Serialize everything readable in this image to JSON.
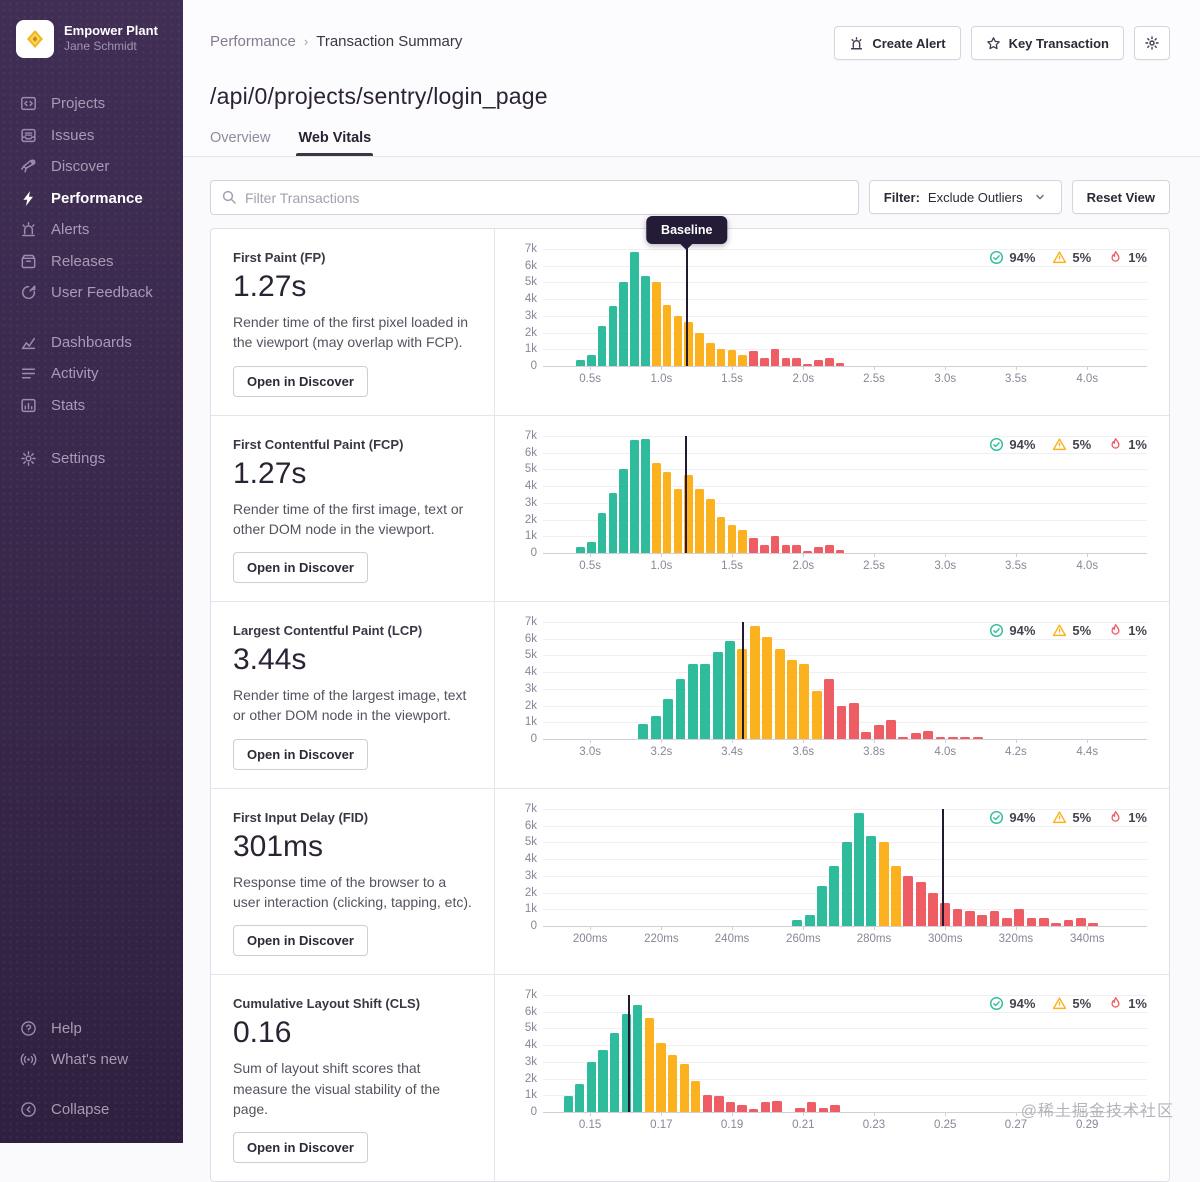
{
  "sidebar": {
    "org": {
      "name": "Empower Plant",
      "user": "Jane Schmidt"
    },
    "nav": [
      {
        "icon": "projects-icon",
        "label": "Projects"
      },
      {
        "icon": "issues-icon",
        "label": "Issues"
      },
      {
        "icon": "discover-icon",
        "label": "Discover"
      },
      {
        "icon": "performance-icon",
        "label": "Performance",
        "active": true
      },
      {
        "icon": "alerts-icon",
        "label": "Alerts"
      },
      {
        "icon": "releases-icon",
        "label": "Releases"
      },
      {
        "icon": "user-feedback-icon",
        "label": "User Feedback"
      },
      {
        "icon": "dashboards-icon",
        "label": "Dashboards"
      },
      {
        "icon": "activity-icon",
        "label": "Activity"
      },
      {
        "icon": "stats-icon",
        "label": "Stats"
      },
      {
        "icon": "settings-icon",
        "label": "Settings"
      },
      {
        "icon": "help-icon",
        "label": "Help"
      },
      {
        "icon": "whats-new-icon",
        "label": "What's new"
      },
      {
        "icon": "collapse-icon",
        "label": "Collapse"
      }
    ]
  },
  "header": {
    "breadcrumb_parent": "Performance",
    "breadcrumb_current": "Transaction Summary",
    "create_alert": "Create Alert",
    "key_transaction": "Key Transaction",
    "title": "/api/0/projects/sentry/login_page",
    "tab_overview": "Overview",
    "tab_web_vitals": "Web Vitals"
  },
  "toolbar": {
    "search_placeholder": "Filter Transactions",
    "filter_label": "Filter:",
    "filter_value": "Exclude Outliers",
    "reset_label": "Reset View"
  },
  "colors": {
    "green": "#2fbc9c",
    "yellow": "#fcb11f",
    "red": "#ee5c64",
    "baseline": "#231a32"
  },
  "panels": [
    {
      "title": "First Paint (FP)",
      "value": "1.27s",
      "description": "Render time of the first pixel loaded in the viewport (may overlap with FCP).",
      "button": "Open in Discover",
      "chart": {
        "type": "bar",
        "ymax": 7000,
        "y_ticks": [
          "7k",
          "6k",
          "5k",
          "4k",
          "3k",
          "2k",
          "1k",
          "0"
        ],
        "x_ticks": [
          {
            "label": "0.5s",
            "f": 0.078
          },
          {
            "label": "1.0s",
            "f": 0.196
          },
          {
            "label": "1.5s",
            "f": 0.313
          },
          {
            "label": "2.0s",
            "f": 0.431
          },
          {
            "label": "2.5s",
            "f": 0.548
          },
          {
            "label": "3.0s",
            "f": 0.666
          },
          {
            "label": "3.5s",
            "f": 0.783
          },
          {
            "label": "4.0s",
            "f": 0.901
          }
        ],
        "bars_start_f": 0.055,
        "bar_slot_f": 0.0179,
        "bars": [
          {
            "v": 350,
            "c": "green"
          },
          {
            "v": 650,
            "c": "green"
          },
          {
            "v": 2400,
            "c": "green"
          },
          {
            "v": 3600,
            "c": "green"
          },
          {
            "v": 5000,
            "c": "green"
          },
          {
            "v": 6800,
            "c": "green"
          },
          {
            "v": 5400,
            "c": "green"
          },
          {
            "v": 5050,
            "c": "yellow"
          },
          {
            "v": 3650,
            "c": "yellow"
          },
          {
            "v": 3000,
            "c": "yellow"
          },
          {
            "v": 2650,
            "c": "yellow"
          },
          {
            "v": 2000,
            "c": "yellow"
          },
          {
            "v": 1400,
            "c": "yellow"
          },
          {
            "v": 1000,
            "c": "yellow"
          },
          {
            "v": 950,
            "c": "yellow"
          },
          {
            "v": 650,
            "c": "yellow"
          },
          {
            "v": 900,
            "c": "red"
          },
          {
            "v": 450,
            "c": "red"
          },
          {
            "v": 1000,
            "c": "red"
          },
          {
            "v": 500,
            "c": "red"
          },
          {
            "v": 500,
            "c": "red"
          },
          {
            "v": 100,
            "c": "red"
          },
          {
            "v": 350,
            "c": "red"
          },
          {
            "v": 500,
            "c": "red"
          },
          {
            "v": 150,
            "c": "red"
          }
        ],
        "baseline_f": 0.238,
        "baseline_label": "Baseline",
        "badges": [
          {
            "type": "check",
            "value": "94%"
          },
          {
            "type": "warning",
            "value": "5%"
          },
          {
            "type": "fire",
            "value": "1%"
          }
        ]
      }
    },
    {
      "title": "First Contentful Paint (FCP)",
      "value": "1.27s",
      "description": "Render time of the first image, text or other DOM node in the viewport.",
      "button": "Open in Discover",
      "chart": {
        "type": "bar",
        "ymax": 7000,
        "y_ticks": [
          "7k",
          "6k",
          "5k",
          "4k",
          "3k",
          "2k",
          "1k",
          "0"
        ],
        "x_ticks": [
          {
            "label": "0.5s",
            "f": 0.078
          },
          {
            "label": "1.0s",
            "f": 0.196
          },
          {
            "label": "1.5s",
            "f": 0.313
          },
          {
            "label": "2.0s",
            "f": 0.431
          },
          {
            "label": "2.5s",
            "f": 0.548
          },
          {
            "label": "3.0s",
            "f": 0.666
          },
          {
            "label": "3.5s",
            "f": 0.783
          },
          {
            "label": "4.0s",
            "f": 0.901
          }
        ],
        "bars_start_f": 0.055,
        "bar_slot_f": 0.0179,
        "bars": [
          {
            "v": 350,
            "c": "green"
          },
          {
            "v": 650,
            "c": "green"
          },
          {
            "v": 2400,
            "c": "green"
          },
          {
            "v": 3600,
            "c": "green"
          },
          {
            "v": 5000,
            "c": "green"
          },
          {
            "v": 6750,
            "c": "green"
          },
          {
            "v": 6800,
            "c": "green"
          },
          {
            "v": 5400,
            "c": "yellow"
          },
          {
            "v": 4850,
            "c": "yellow"
          },
          {
            "v": 3850,
            "c": "yellow"
          },
          {
            "v": 4650,
            "c": "yellow"
          },
          {
            "v": 3850,
            "c": "yellow"
          },
          {
            "v": 3250,
            "c": "yellow"
          },
          {
            "v": 2150,
            "c": "yellow"
          },
          {
            "v": 1650,
            "c": "yellow"
          },
          {
            "v": 1400,
            "c": "yellow"
          },
          {
            "v": 900,
            "c": "red"
          },
          {
            "v": 450,
            "c": "red"
          },
          {
            "v": 1000,
            "c": "red"
          },
          {
            "v": 450,
            "c": "red"
          },
          {
            "v": 450,
            "c": "red"
          },
          {
            "v": 100,
            "c": "red"
          },
          {
            "v": 350,
            "c": "red"
          },
          {
            "v": 450,
            "c": "red"
          },
          {
            "v": 150,
            "c": "red"
          }
        ],
        "baseline_f": 0.236,
        "badges": [
          {
            "type": "check",
            "value": "94%"
          },
          {
            "type": "warning",
            "value": "5%"
          },
          {
            "type": "fire",
            "value": "1%"
          }
        ]
      }
    },
    {
      "title": "Largest Contentful Paint (LCP)",
      "value": "3.44s",
      "description": "Render time of the largest image, text or other DOM node in the viewport.",
      "button": "Open in Discover",
      "chart": {
        "type": "bar",
        "ymax": 7000,
        "y_ticks": [
          "7k",
          "6k",
          "5k",
          "4k",
          "3k",
          "2k",
          "1k",
          "0"
        ],
        "x_ticks": [
          {
            "label": "3.0s",
            "f": 0.078
          },
          {
            "label": "3.2s",
            "f": 0.196
          },
          {
            "label": "3.4s",
            "f": 0.313
          },
          {
            "label": "3.6s",
            "f": 0.431
          },
          {
            "label": "3.8s",
            "f": 0.548
          },
          {
            "label": "4.0s",
            "f": 0.666
          },
          {
            "label": "4.2s",
            "f": 0.783
          },
          {
            "label": "4.4s",
            "f": 0.901
          }
        ],
        "bars_start_f": 0.158,
        "bar_slot_f": 0.0205,
        "bars": [
          {
            "v": 900,
            "c": "green"
          },
          {
            "v": 1400,
            "c": "green"
          },
          {
            "v": 2400,
            "c": "green"
          },
          {
            "v": 3600,
            "c": "green"
          },
          {
            "v": 4500,
            "c": "green"
          },
          {
            "v": 4500,
            "c": "green"
          },
          {
            "v": 5200,
            "c": "green"
          },
          {
            "v": 5850,
            "c": "green"
          },
          {
            "v": 5400,
            "c": "yellow"
          },
          {
            "v": 6750,
            "c": "yellow"
          },
          {
            "v": 6100,
            "c": "yellow"
          },
          {
            "v": 5400,
            "c": "yellow"
          },
          {
            "v": 4750,
            "c": "yellow"
          },
          {
            "v": 4500,
            "c": "yellow"
          },
          {
            "v": 2850,
            "c": "yellow"
          },
          {
            "v": 3600,
            "c": "red"
          },
          {
            "v": 2000,
            "c": "red"
          },
          {
            "v": 2150,
            "c": "red"
          },
          {
            "v": 400,
            "c": "red"
          },
          {
            "v": 850,
            "c": "red"
          },
          {
            "v": 1150,
            "c": "red"
          },
          {
            "v": 100,
            "c": "red"
          },
          {
            "v": 350,
            "c": "red"
          },
          {
            "v": 450,
            "c": "red"
          },
          {
            "v": 100,
            "c": "red"
          },
          {
            "v": 100,
            "c": "red"
          },
          {
            "v": 100,
            "c": "red"
          },
          {
            "v": 100,
            "c": "red"
          }
        ],
        "baseline_f": 0.331,
        "badges": [
          {
            "type": "check",
            "value": "94%"
          },
          {
            "type": "warning",
            "value": "5%"
          },
          {
            "type": "fire",
            "value": "1%"
          }
        ]
      }
    },
    {
      "title": "First Input Delay (FID)",
      "value": "301ms",
      "description": "Response time of the browser to a user interaction (clicking, tapping, etc).",
      "button": "Open in Discover",
      "chart": {
        "type": "bar",
        "ymax": 7000,
        "y_ticks": [
          "7k",
          "6k",
          "5k",
          "4k",
          "3k",
          "2k",
          "1k",
          "0"
        ],
        "x_ticks": [
          {
            "label": "200ms",
            "f": 0.078
          },
          {
            "label": "220ms",
            "f": 0.196
          },
          {
            "label": "240ms",
            "f": 0.313
          },
          {
            "label": "260ms",
            "f": 0.431
          },
          {
            "label": "280ms",
            "f": 0.548
          },
          {
            "label": "300ms",
            "f": 0.666
          },
          {
            "label": "320ms",
            "f": 0.783
          },
          {
            "label": "340ms",
            "f": 0.901
          }
        ],
        "bars_start_f": 0.413,
        "bar_slot_f": 0.0204,
        "bars": [
          {
            "v": 350,
            "c": "green"
          },
          {
            "v": 650,
            "c": "green"
          },
          {
            "v": 2400,
            "c": "green"
          },
          {
            "v": 3600,
            "c": "green"
          },
          {
            "v": 5000,
            "c": "green"
          },
          {
            "v": 6750,
            "c": "green"
          },
          {
            "v": 5400,
            "c": "green"
          },
          {
            "v": 5000,
            "c": "yellow"
          },
          {
            "v": 3600,
            "c": "yellow"
          },
          {
            "v": 3000,
            "c": "red"
          },
          {
            "v": 2650,
            "c": "red"
          },
          {
            "v": 2000,
            "c": "red"
          },
          {
            "v": 1400,
            "c": "red"
          },
          {
            "v": 1000,
            "c": "red"
          },
          {
            "v": 900,
            "c": "red"
          },
          {
            "v": 650,
            "c": "red"
          },
          {
            "v": 900,
            "c": "red"
          },
          {
            "v": 450,
            "c": "red"
          },
          {
            "v": 1000,
            "c": "red"
          },
          {
            "v": 500,
            "c": "red"
          },
          {
            "v": 450,
            "c": "red"
          },
          {
            "v": 150,
            "c": "red"
          },
          {
            "v": 350,
            "c": "red"
          },
          {
            "v": 450,
            "c": "red"
          },
          {
            "v": 150,
            "c": "red"
          }
        ],
        "baseline_f": 0.662,
        "badges": [
          {
            "type": "check",
            "value": "94%"
          },
          {
            "type": "warning",
            "value": "5%"
          },
          {
            "type": "fire",
            "value": "1%"
          }
        ]
      }
    },
    {
      "title": "Cumulative Layout Shift (CLS)",
      "value": "0.16",
      "description": "Sum of layout shift scores that measure the visual stability of the page.",
      "button": "Open in Discover",
      "chart": {
        "type": "bar",
        "ymax": 7000,
        "y_ticks": [
          "7k",
          "6k",
          "5k",
          "4k",
          "3k",
          "2k",
          "1k",
          "0"
        ],
        "x_ticks": [
          {
            "label": "0.15",
            "f": 0.078
          },
          {
            "label": "0.17",
            "f": 0.196
          },
          {
            "label": "0.19",
            "f": 0.313
          },
          {
            "label": "0.21",
            "f": 0.431
          },
          {
            "label": "0.23",
            "f": 0.548
          },
          {
            "label": "0.25",
            "f": 0.666
          },
          {
            "label": "0.27",
            "f": 0.783
          },
          {
            "label": "0.29",
            "f": 0.901
          }
        ],
        "bars_start_f": 0.034,
        "bar_slot_f": 0.0192,
        "bars": [
          {
            "v": 950,
            "c": "green"
          },
          {
            "v": 1650,
            "c": "green"
          },
          {
            "v": 3000,
            "c": "green"
          },
          {
            "v": 3700,
            "c": "green"
          },
          {
            "v": 4750,
            "c": "green"
          },
          {
            "v": 5850,
            "c": "green"
          },
          {
            "v": 6400,
            "c": "green"
          },
          {
            "v": 5650,
            "c": "yellow"
          },
          {
            "v": 4100,
            "c": "yellow"
          },
          {
            "v": 3400,
            "c": "yellow"
          },
          {
            "v": 2850,
            "c": "yellow"
          },
          {
            "v": 1850,
            "c": "yellow"
          },
          {
            "v": 1000,
            "c": "red"
          },
          {
            "v": 950,
            "c": "red"
          },
          {
            "v": 600,
            "c": "red"
          },
          {
            "v": 400,
            "c": "red"
          },
          {
            "v": 150,
            "c": "red"
          },
          {
            "v": 600,
            "c": "red"
          },
          {
            "v": 650,
            "c": "red"
          },
          {
            "v": 0,
            "c": "red"
          },
          {
            "v": 250,
            "c": "red"
          },
          {
            "v": 600,
            "c": "red"
          },
          {
            "v": 250,
            "c": "red"
          },
          {
            "v": 400,
            "c": "red"
          }
        ],
        "baseline_f": 0.142,
        "badges": [
          {
            "type": "check",
            "value": "94%"
          },
          {
            "type": "warning",
            "value": "5%"
          },
          {
            "type": "fire",
            "value": "1%"
          }
        ]
      }
    }
  ],
  "watermark": "@稀土掘金技术社区"
}
